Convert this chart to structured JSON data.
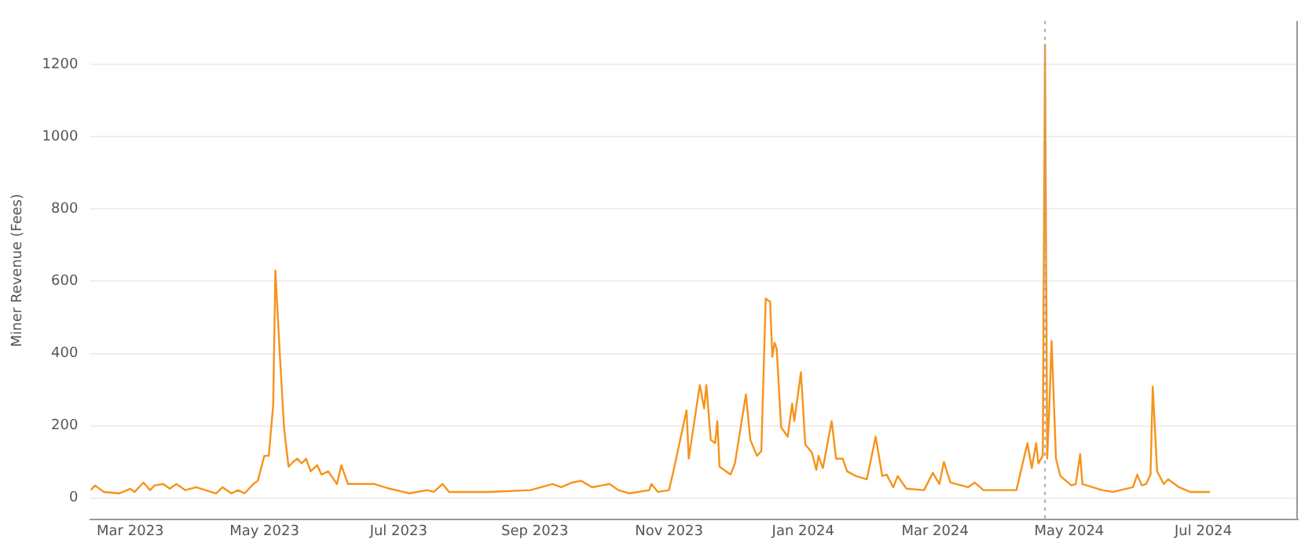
{
  "chart_data": {
    "type": "line",
    "ylabel": "Miner Revenue (Fees)",
    "x": [
      "2023-02-11",
      "2023-02-13",
      "2023-02-17",
      "2023-02-24",
      "2023-03-01",
      "2023-03-03",
      "2023-03-07",
      "2023-03-10",
      "2023-03-12",
      "2023-03-16",
      "2023-03-19",
      "2023-03-22",
      "2023-03-26",
      "2023-03-31",
      "2023-04-09",
      "2023-04-12",
      "2023-04-16",
      "2023-04-19",
      "2023-04-22",
      "2023-04-26",
      "2023-04-28",
      "2023-05-01",
      "2023-05-03",
      "2023-05-05",
      "2023-05-06",
      "2023-05-08",
      "2023-05-10",
      "2023-05-12",
      "2023-05-14",
      "2023-05-16",
      "2023-05-18",
      "2023-05-20",
      "2023-05-22",
      "2023-05-25",
      "2023-05-27",
      "2023-05-30",
      "2023-06-03",
      "2023-06-05",
      "2023-06-08",
      "2023-06-13",
      "2023-06-20",
      "2023-06-27",
      "2023-07-06",
      "2023-07-14",
      "2023-07-17",
      "2023-07-21",
      "2023-07-24",
      "2023-07-30",
      "2023-08-11",
      "2023-08-30",
      "2023-09-09",
      "2023-09-13",
      "2023-09-18",
      "2023-09-22",
      "2023-09-27",
      "2023-10-05",
      "2023-10-09",
      "2023-10-14",
      "2023-10-23",
      "2023-10-24",
      "2023-10-27",
      "2023-11-01",
      "2023-11-03",
      "2023-11-09",
      "2023-11-10",
      "2023-11-15",
      "2023-11-17",
      "2023-11-18",
      "2023-11-20",
      "2023-11-22",
      "2023-11-23",
      "2023-11-24",
      "2023-11-29",
      "2023-12-01",
      "2023-12-06",
      "2023-12-08",
      "2023-12-11",
      "2023-12-13",
      "2023-12-15",
      "2023-12-17",
      "2023-12-18",
      "2023-12-19",
      "2023-12-20",
      "2023-12-22",
      "2023-12-25",
      "2023-12-27",
      "2023-12-28",
      "2023-12-31",
      "2024-01-02",
      "2024-01-05",
      "2024-01-07",
      "2024-01-08",
      "2024-01-10",
      "2024-01-14",
      "2024-01-16",
      "2024-01-19",
      "2024-01-21",
      "2024-01-25",
      "2024-01-30",
      "2024-02-03",
      "2024-02-06",
      "2024-02-08",
      "2024-02-11",
      "2024-02-13",
      "2024-02-17",
      "2024-02-25",
      "2024-02-29",
      "2024-03-03",
      "2024-03-05",
      "2024-03-08",
      "2024-03-16",
      "2024-03-19",
      "2024-03-23",
      "2024-04-04",
      "2024-04-07",
      "2024-04-12",
      "2024-04-14",
      "2024-04-16",
      "2024-04-17",
      "2024-04-19",
      "2024-04-20",
      "2024-04-21",
      "2024-04-22",
      "2024-04-23",
      "2024-04-25",
      "2024-04-27",
      "2024-05-02",
      "2024-05-04",
      "2024-05-06",
      "2024-05-07",
      "2024-05-16",
      "2024-05-21",
      "2024-05-30",
      "2024-06-01",
      "2024-06-03",
      "2024-06-05",
      "2024-06-07",
      "2024-06-08",
      "2024-06-10",
      "2024-06-13",
      "2024-06-15",
      "2024-06-20",
      "2024-06-25",
      "2024-07-04"
    ],
    "series": [
      {
        "color": "#f7931a",
        "values": [
          22,
          35,
          17,
          13,
          26,
          17,
          43,
          22,
          35,
          39,
          26,
          39,
          22,
          30,
          13,
          30,
          13,
          22,
          13,
          39,
          48,
          117,
          117,
          257,
          630,
          400,
          190,
          87,
          100,
          109,
          96,
          109,
          74,
          91,
          65,
          74,
          39,
          91,
          39,
          39,
          39,
          26,
          13,
          22,
          17,
          39,
          17,
          17,
          17,
          22,
          39,
          30,
          43,
          48,
          30,
          39,
          22,
          13,
          22,
          39,
          17,
          22,
          74,
          243,
          109,
          313,
          248,
          313,
          161,
          152,
          213,
          87,
          65,
          96,
          287,
          161,
          117,
          130,
          552,
          543,
          391,
          430,
          413,
          196,
          170,
          261,
          213,
          348,
          148,
          126,
          78,
          117,
          83,
          213,
          109,
          109,
          74,
          61,
          52,
          170,
          61,
          65,
          30,
          61,
          26,
          22,
          70,
          39,
          100,
          43,
          30,
          43,
          22,
          22,
          22,
          152,
          83,
          152,
          96,
          117,
          1255,
          109,
          257,
          435,
          109,
          61,
          35,
          39,
          122,
          39,
          22,
          17,
          30,
          65,
          35,
          39,
          65,
          309,
          74,
          39,
          52,
          30,
          17,
          17
        ]
      }
    ],
    "xlim": [
      "2023-02-11",
      "2024-08-13"
    ],
    "xticks": [
      {
        "value": "2023-03-01",
        "label": "Mar 2023"
      },
      {
        "value": "2023-05-01",
        "label": "May 2023"
      },
      {
        "value": "2023-07-01",
        "label": "Jul 2023"
      },
      {
        "value": "2023-09-01",
        "label": "Sep 2023"
      },
      {
        "value": "2023-11-01",
        "label": "Nov 2023"
      },
      {
        "value": "2024-01-01",
        "label": "Jan 2024"
      },
      {
        "value": "2024-03-01",
        "label": "Mar 2024"
      },
      {
        "value": "2024-05-01",
        "label": "May 2024"
      },
      {
        "value": "2024-07-01",
        "label": "Jul 2024"
      }
    ],
    "ylim": [
      -60,
      1320
    ],
    "yticks": [
      0,
      200,
      400,
      600,
      800,
      1000,
      1200
    ],
    "grid": "y",
    "legend": false,
    "marker": "none",
    "line_style": "solid",
    "ref_lines": [
      {
        "axis": "x",
        "value": "2024-04-20",
        "label": null,
        "color": "#aaaaaa",
        "line_style": "dotted"
      }
    ]
  }
}
